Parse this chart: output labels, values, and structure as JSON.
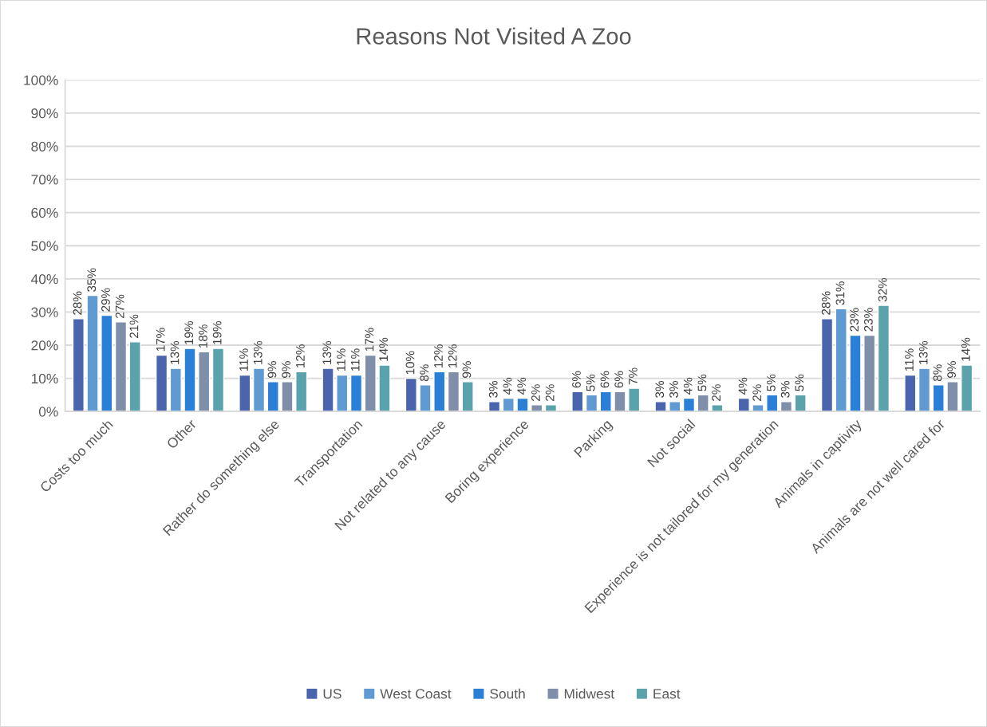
{
  "chart_data": {
    "type": "bar",
    "title": "Reasons Not Visited A Zoo",
    "categories": [
      "Costs too much",
      "Other",
      "Rather do something else",
      "Transportation",
      "Not related to any cause",
      "Boring experience",
      "Parking",
      "Not social",
      "Experience is not tailored for my generation",
      "Animals in captivity",
      "Animals are not well cared for"
    ],
    "series": [
      {
        "name": "US",
        "color": "#4a65ae",
        "values": [
          28,
          17,
          11,
          13,
          10,
          3,
          6,
          3,
          4,
          28,
          11
        ],
        "value_labels": [
          "28%",
          "17%",
          "11%",
          "13%",
          "10%",
          "3%",
          "6%",
          "3%",
          "4%",
          "28%",
          "11%"
        ]
      },
      {
        "name": "West Coast",
        "color": "#5f9bd2",
        "values": [
          35,
          13,
          13,
          11,
          8,
          4,
          5,
          3,
          2,
          31,
          13
        ],
        "value_labels": [
          "35%",
          "13%",
          "13%",
          "11%",
          "8%",
          "4%",
          "5%",
          "3%",
          "2%",
          "31%",
          "13%"
        ]
      },
      {
        "name": "South",
        "color": "#2a7fd6",
        "values": [
          29,
          19,
          9,
          11,
          12,
          4,
          6,
          4,
          5,
          23,
          8
        ],
        "value_labels": [
          "29%",
          "19%",
          "9%",
          "11%",
          "12%",
          "4%",
          "6%",
          "4%",
          "5%",
          "23%",
          "8%"
        ]
      },
      {
        "name": "Midwest",
        "color": "#7f8fa9",
        "values": [
          27,
          18,
          9,
          17,
          12,
          2,
          6,
          5,
          3,
          23,
          9
        ],
        "value_labels": [
          "27%",
          "18%",
          "9%",
          "17%",
          "12%",
          "2%",
          "6%",
          "5%",
          "3%",
          "23%",
          "9%"
        ]
      },
      {
        "name": "East",
        "color": "#5aa3ac",
        "values": [
          21,
          19,
          12,
          14,
          9,
          2,
          7,
          2,
          5,
          32,
          14
        ],
        "value_labels": [
          "21%",
          "19%",
          "12%",
          "14%",
          "9%",
          "2%",
          "7%",
          "2%",
          "5%",
          "32%",
          "14%"
        ]
      }
    ],
    "ylim": [
      0,
      100
    ],
    "yticks": [
      {
        "value": 0,
        "label": "0%"
      },
      {
        "value": 10,
        "label": "10%"
      },
      {
        "value": 20,
        "label": "20%"
      },
      {
        "value": 30,
        "label": "30%"
      },
      {
        "value": 40,
        "label": "40%"
      },
      {
        "value": 50,
        "label": "50%"
      },
      {
        "value": 60,
        "label": "60%"
      },
      {
        "value": 70,
        "label": "70%"
      },
      {
        "value": 80,
        "label": "80%"
      },
      {
        "value": 90,
        "label": "90%"
      },
      {
        "value": 100,
        "label": "100%"
      }
    ],
    "grid": "y",
    "legend": "bottom"
  }
}
